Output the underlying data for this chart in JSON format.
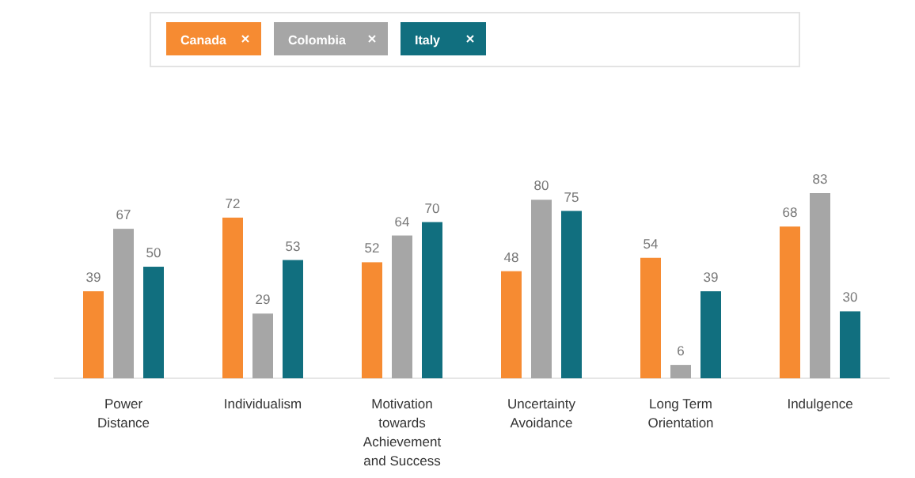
{
  "chart_data": {
    "type": "bar",
    "categories": [
      "Power Distance",
      "Individualism",
      "Motivation towards Achievement and Success",
      "Uncertainty Avoidance",
      "Long Term Orientation",
      "Indulgence"
    ],
    "series": [
      {
        "name": "Canada",
        "color": "#f68b32",
        "values": [
          39,
          72,
          52,
          48,
          54,
          68
        ]
      },
      {
        "name": "Colombia",
        "color": "#a6a6a6",
        "values": [
          67,
          29,
          64,
          80,
          6,
          83
        ]
      },
      {
        "name": "Italy",
        "color": "#116f7f",
        "values": [
          50,
          53,
          70,
          75,
          39,
          30
        ]
      }
    ],
    "data_labels": true,
    "legend": "top",
    "grid": false
  }
}
